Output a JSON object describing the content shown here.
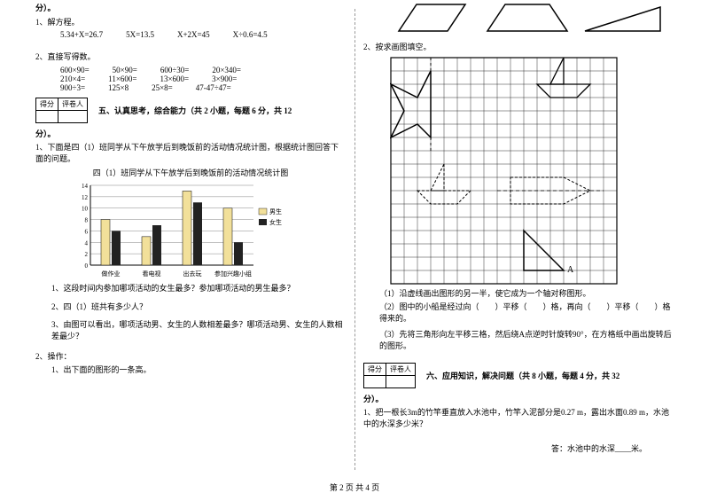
{
  "left": {
    "header": "分）。",
    "q1": "1、解方程。",
    "eq1": [
      "5.34+X=26.7",
      "5X=13.5",
      "X+2X=45",
      "X÷0.6=4.5"
    ],
    "q2": "2、直接写得数。",
    "eq2a": [
      "600×90=",
      "50×90=",
      "600÷30=",
      "20×340="
    ],
    "eq2b": [
      "210×4=",
      "11×600=",
      "13×600=",
      "3×900="
    ],
    "eq2c": [
      "900÷3=",
      "125×8",
      "25×8=",
      "47-47÷47="
    ],
    "scoreLabels": [
      "得分",
      "评卷人"
    ],
    "section5": "五、认真思考，综合能力（共 2 小题，每题 6 分，共 12",
    "section5b": "分）。",
    "q5_1": "1、下面是四（1）班同学从下午放学后到晚饭前的活动情况统计图，根据统计图回答下面的问题。",
    "chartTitle": "四（1）班同学从下午放学后到晚饭前的活动情况统计图",
    "chart": {
      "yMax": 14,
      "yStep": 2,
      "categories": [
        "做作业",
        "看电视",
        "出去玩",
        "参加兴趣小组"
      ],
      "boys": [
        8,
        5,
        13,
        10
      ],
      "girls": [
        6,
        7,
        11,
        4
      ],
      "boyColor": "#f2e09a",
      "girlColor": "#222222",
      "legend": [
        "男生",
        "女生"
      ]
    },
    "q5_1_1": "1、这段时间内参加哪项活动的女生最多？参加哪项活动的男生最多？",
    "q5_1_2": "2、四（1）班共有多少人？",
    "q5_1_3": "3、由图可以看出，哪项活动男、女生的人数相差最多？哪项活动男、女生的人数相差最少？",
    "q5_2": "2、操作：",
    "q5_2_1": "1、出下面的图形的一条高。"
  },
  "right": {
    "q2": "2、按求画图填空。",
    "grid": {
      "cells": 17,
      "size": 15,
      "labelA": "A"
    },
    "g1": "（1）沿虚线画出图形的另一半，使它成为一个轴对称图形。",
    "g2": "（2）图中的小船是经过向（　　）平移（　　）格，再向（　　）平移（　　）格得来的。",
    "g3": "（3）先将三角形向左平移三格，然后绕A点逆时针旋转90°，在方格纸中画出旋转后的图形。",
    "scoreLabels": [
      "得分",
      "评卷人"
    ],
    "section6": "六、应用知识，解决问题（共 8 小题，每题 4 分，共 32",
    "section6b": "分）。",
    "q6_1": "1、把一根长3m的竹竿垂直放入水池中，竹竿入泥部分是0.27 m，露出水面0.89 m，水池中的水深多少米？",
    "ans": "答：水池中的水深____米。"
  },
  "footer": "第 2 页 共 4 页"
}
